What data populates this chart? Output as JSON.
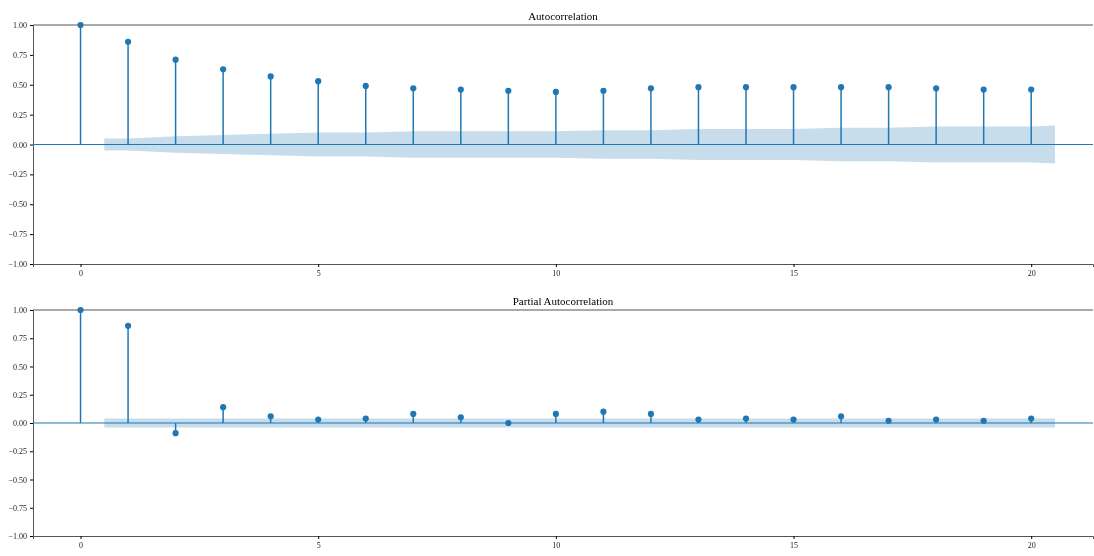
{
  "chart_data": [
    {
      "type": "lollipop",
      "title": "Autocorrelation",
      "x": [
        0,
        1,
        2,
        3,
        4,
        5,
        6,
        7,
        8,
        9,
        10,
        11,
        12,
        13,
        14,
        15,
        16,
        17,
        18,
        19,
        20
      ],
      "xlim": [
        -1,
        21.3
      ],
      "xticks": [
        0,
        5,
        10,
        15,
        20
      ],
      "ylim": [
        -1,
        1
      ],
      "yticks": [
        {
          "value": -1,
          "label": "−1.00"
        },
        {
          "value": -0.75,
          "label": "−0.75"
        },
        {
          "value": -0.5,
          "label": "−0.50"
        },
        {
          "value": -0.25,
          "label": "−0.25"
        },
        {
          "value": 0,
          "label": "0.00"
        },
        {
          "value": 0.25,
          "label": "0.25"
        },
        {
          "value": 0.5,
          "label": "0.50"
        },
        {
          "value": 0.75,
          "label": "0.75"
        },
        {
          "value": 1,
          "label": "1.00"
        }
      ],
      "marker": "circle",
      "grid": false,
      "series": [
        {
          "color": "#1f77b4",
          "values": [
            1,
            0.86,
            0.71,
            0.63,
            0.57,
            0.53,
            0.49,
            0.47,
            0.46,
            0.45,
            0.44,
            0.45,
            0.47,
            0.48,
            0.48,
            0.48,
            0.48,
            0.48,
            0.47,
            0.46,
            0.46
          ]
        },
        {
          "type": "line",
          "marker": "none",
          "color": "#1f77b4",
          "x": [
            -1,
            0.5,
            1,
            2,
            3,
            4,
            5,
            6,
            7,
            8,
            9,
            10,
            11,
            12,
            13,
            14,
            15,
            16,
            17,
            18,
            19,
            20,
            20.5,
            21.3
          ],
          "values": [
            0,
            0,
            0,
            0,
            0,
            0,
            0,
            0,
            0,
            0,
            0,
            0,
            0,
            0,
            0,
            0,
            0,
            0,
            0,
            0,
            0,
            0,
            0,
            0
          ],
          "lower": [
            null,
            -0.05,
            -0.05,
            -0.07,
            -0.08,
            -0.09,
            -0.1,
            -0.1,
            -0.11,
            -0.11,
            -0.11,
            -0.11,
            -0.12,
            -0.12,
            -0.13,
            -0.13,
            -0.13,
            -0.14,
            -0.14,
            -0.15,
            -0.15,
            -0.15,
            -0.16,
            null
          ],
          "upper": [
            null,
            0.05,
            0.05,
            0.07,
            0.08,
            0.09,
            0.1,
            0.1,
            0.11,
            0.11,
            0.11,
            0.11,
            0.12,
            0.12,
            0.13,
            0.13,
            0.13,
            0.14,
            0.14,
            0.15,
            0.15,
            0.15,
            0.16,
            null
          ]
        }
      ]
    },
    {
      "type": "lollipop",
      "title": "Partial Autocorrelation",
      "x": [
        0,
        1,
        2,
        3,
        4,
        5,
        6,
        7,
        8,
        9,
        10,
        11,
        12,
        13,
        14,
        15,
        16,
        17,
        18,
        19,
        20
      ],
      "xlim": [
        -1,
        21.3
      ],
      "xticks": [
        0,
        5,
        10,
        15,
        20
      ],
      "ylim": [
        -1,
        1
      ],
      "yticks": [
        {
          "value": -1,
          "label": "−1.00"
        },
        {
          "value": -0.75,
          "label": "−0.75"
        },
        {
          "value": -0.5,
          "label": "−0.50"
        },
        {
          "value": -0.25,
          "label": "−0.25"
        },
        {
          "value": 0,
          "label": "0.00"
        },
        {
          "value": 0.25,
          "label": "0.25"
        },
        {
          "value": 0.5,
          "label": "0.50"
        },
        {
          "value": 0.75,
          "label": "0.75"
        },
        {
          "value": 1,
          "label": "1.00"
        }
      ],
      "marker": "circle",
      "grid": false,
      "series": [
        {
          "color": "#1f77b4",
          "values": [
            1,
            0.86,
            -0.09,
            0.14,
            0.06,
            0.03,
            0.04,
            0.08,
            0.05,
            0,
            0.08,
            0.1,
            0.08,
            0.03,
            0.04,
            0.03,
            0.06,
            0.02,
            0.03,
            0.02,
            0.04
          ]
        },
        {
          "type": "line",
          "marker": "none",
          "color": "#1f77b4",
          "x": [
            -1,
            0.5,
            1,
            2,
            3,
            4,
            5,
            6,
            7,
            8,
            9,
            10,
            11,
            12,
            13,
            14,
            15,
            16,
            17,
            18,
            19,
            20,
            20.5,
            21.3
          ],
          "values": [
            0,
            0,
            0,
            0,
            0,
            0,
            0,
            0,
            0,
            0,
            0,
            0,
            0,
            0,
            0,
            0,
            0,
            0,
            0,
            0,
            0,
            0,
            0,
            0
          ],
          "lower": [
            null,
            -0.04,
            -0.04,
            -0.04,
            -0.04,
            -0.04,
            -0.04,
            -0.04,
            -0.04,
            -0.04,
            -0.04,
            -0.04,
            -0.04,
            -0.04,
            -0.04,
            -0.04,
            -0.04,
            -0.04,
            -0.04,
            -0.04,
            -0.04,
            -0.04,
            -0.04,
            null
          ],
          "upper": [
            null,
            0.04,
            0.04,
            0.04,
            0.04,
            0.04,
            0.04,
            0.04,
            0.04,
            0.04,
            0.04,
            0.04,
            0.04,
            0.04,
            0.04,
            0.04,
            0.04,
            0.04,
            0.04,
            0.04,
            0.04,
            0.04,
            0.04,
            null
          ]
        }
      ]
    }
  ]
}
